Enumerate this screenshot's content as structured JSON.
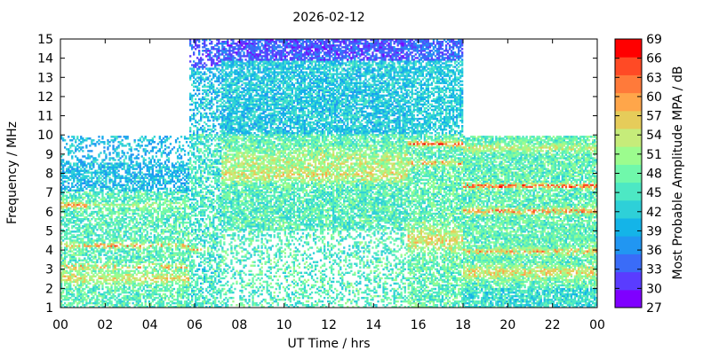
{
  "chart_data": {
    "type": "heatmap",
    "title": "2026-02-12",
    "xlabel": "UT Time / hrs",
    "ylabel": "Frequency / MHz",
    "xlim": [
      0,
      24
    ],
    "ylim": [
      1,
      15
    ],
    "x_ticks": [
      "00",
      "02",
      "04",
      "06",
      "08",
      "10",
      "12",
      "14",
      "16",
      "18",
      "20",
      "22",
      "00"
    ],
    "y_ticks": [
      "1",
      "2",
      "3",
      "4",
      "5",
      "6",
      "7",
      "8",
      "9",
      "10",
      "11",
      "12",
      "13",
      "14",
      "15"
    ],
    "colorbar": {
      "label": "Most Probable Amplitude MPA / dB",
      "range": [
        27,
        69
      ],
      "ticks": [
        "27",
        "30",
        "33",
        "36",
        "39",
        "42",
        "45",
        "48",
        "51",
        "54",
        "57",
        "60",
        "63",
        "66",
        "69"
      ],
      "colors": [
        "#7f00ff",
        "#5a3cff",
        "#3a6cf8",
        "#2196f2",
        "#14b4e8",
        "#2ed0d8",
        "#4de8c4",
        "#70f8ab",
        "#9cfc8e",
        "#c6ec7a",
        "#e6cc5a",
        "#ffa64a",
        "#ff7a3a",
        "#ff4a25",
        "#ff0000"
      ]
    },
    "grid": false,
    "regions": [
      {
        "x": [
          0,
          5.7
        ],
        "fmax": 9.9,
        "level": "low-dominant",
        "red_bands_mhz": [
          3.1,
          4.2,
          6.3
        ]
      },
      {
        "x": [
          5.7,
          7.2
        ],
        "fmax": 15,
        "level": "high-frequency purple/blue"
      },
      {
        "x": [
          7.2,
          15.5
        ],
        "fmax": 15,
        "level": "dense cyan-green, striped"
      },
      {
        "x": [
          15.5,
          18
        ],
        "fmax": 15,
        "level": "mixed, red at 9.5 and 8.5"
      },
      {
        "x": [
          18,
          24
        ],
        "fmax": 9.9,
        "level": "dense, red bands at 7.3, 6.0, 3.9"
      }
    ]
  }
}
